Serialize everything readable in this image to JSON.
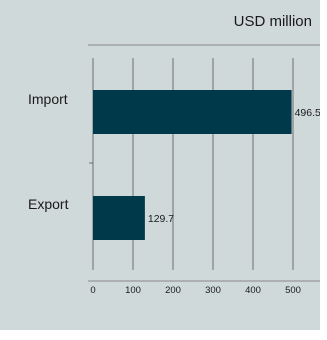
{
  "chart_data": {
    "type": "bar",
    "orientation": "horizontal",
    "unit": "USD million",
    "categories": [
      "Import",
      "Export"
    ],
    "values": [
      496.5,
      129.7
    ],
    "data_labels": [
      "496.5",
      "129.7"
    ],
    "xticks": [
      0,
      100,
      200,
      300,
      400,
      500
    ],
    "xtick_labels": [
      "0",
      "100",
      "200",
      "300",
      "400",
      "500"
    ],
    "xlim": [
      0,
      550
    ],
    "grid": "vertical",
    "colors": {
      "bar": "#003a4a",
      "background": "#cfd9da",
      "gridline": "#555555"
    }
  }
}
